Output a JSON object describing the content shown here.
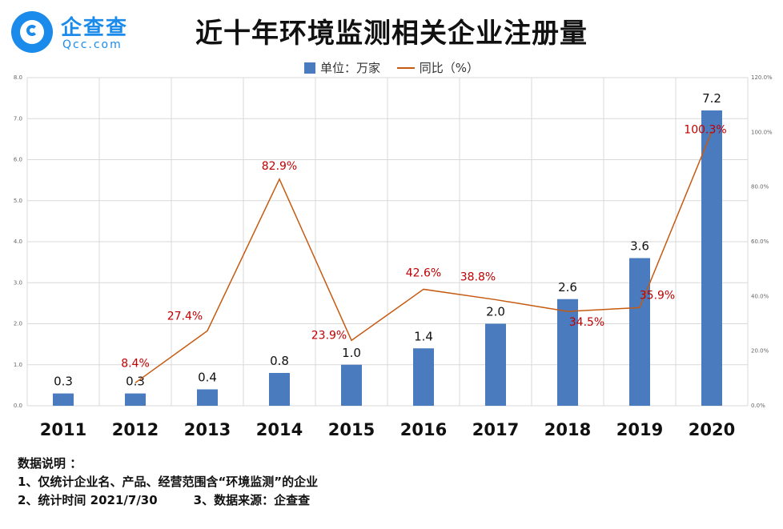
{
  "logo": {
    "name": "企查查",
    "domain": "Qcc.com"
  },
  "title": "近十年环境监测相关企业注册量",
  "legend": {
    "bar": "单位：万家",
    "line": "同比（%）"
  },
  "colors": {
    "bar": "#4b7bbf",
    "line": "#c55a11",
    "line_label": "#c00000",
    "grid": "#d9d9d9"
  },
  "chart_data": {
    "type": "bar",
    "categories": [
      "2011",
      "2012",
      "2013",
      "2014",
      "2015",
      "2016",
      "2017",
      "2018",
      "2019",
      "2020"
    ],
    "series": [
      {
        "name": "单位：万家",
        "type": "bar",
        "axis": "left",
        "values": [
          0.3,
          0.3,
          0.4,
          0.8,
          1.0,
          1.4,
          2.0,
          2.6,
          3.6,
          7.2
        ],
        "labels": [
          "0.3",
          "0.3",
          "0.4",
          "0.8",
          "1.0",
          "1.4",
          "2.0",
          "2.6",
          "3.6",
          "7.2"
        ]
      },
      {
        "name": "同比（%）",
        "type": "line",
        "axis": "right",
        "values": [
          null,
          8.4,
          27.4,
          82.9,
          23.9,
          42.6,
          38.8,
          34.5,
          35.9,
          100.3
        ],
        "labels": [
          "",
          "8.4%",
          "27.4%",
          "82.9%",
          "23.9%",
          "42.6%",
          "38.8%",
          "34.5%",
          "35.9%",
          "100.3%"
        ]
      }
    ],
    "y_left": {
      "min": 0,
      "max": 8,
      "ticks": [
        "0.0",
        "1.0",
        "2.0",
        "3.0",
        "4.0",
        "5.0",
        "6.0",
        "7.0",
        "8.0"
      ]
    },
    "y_right": {
      "min": 0,
      "max": 120,
      "ticks": [
        "0.0%",
        "20.0%",
        "40.0%",
        "60.0%",
        "80.0%",
        "100.0%",
        "120.0%"
      ]
    },
    "grid": true,
    "legend_position": "top"
  },
  "notes": {
    "heading": "数据说明 ：",
    "line1": "1、仅统计企业名、产品、经营范围含“环境监测”的企业",
    "line2": "2、统计时间 2021/7/30　　　3、数据来源：企查查"
  }
}
